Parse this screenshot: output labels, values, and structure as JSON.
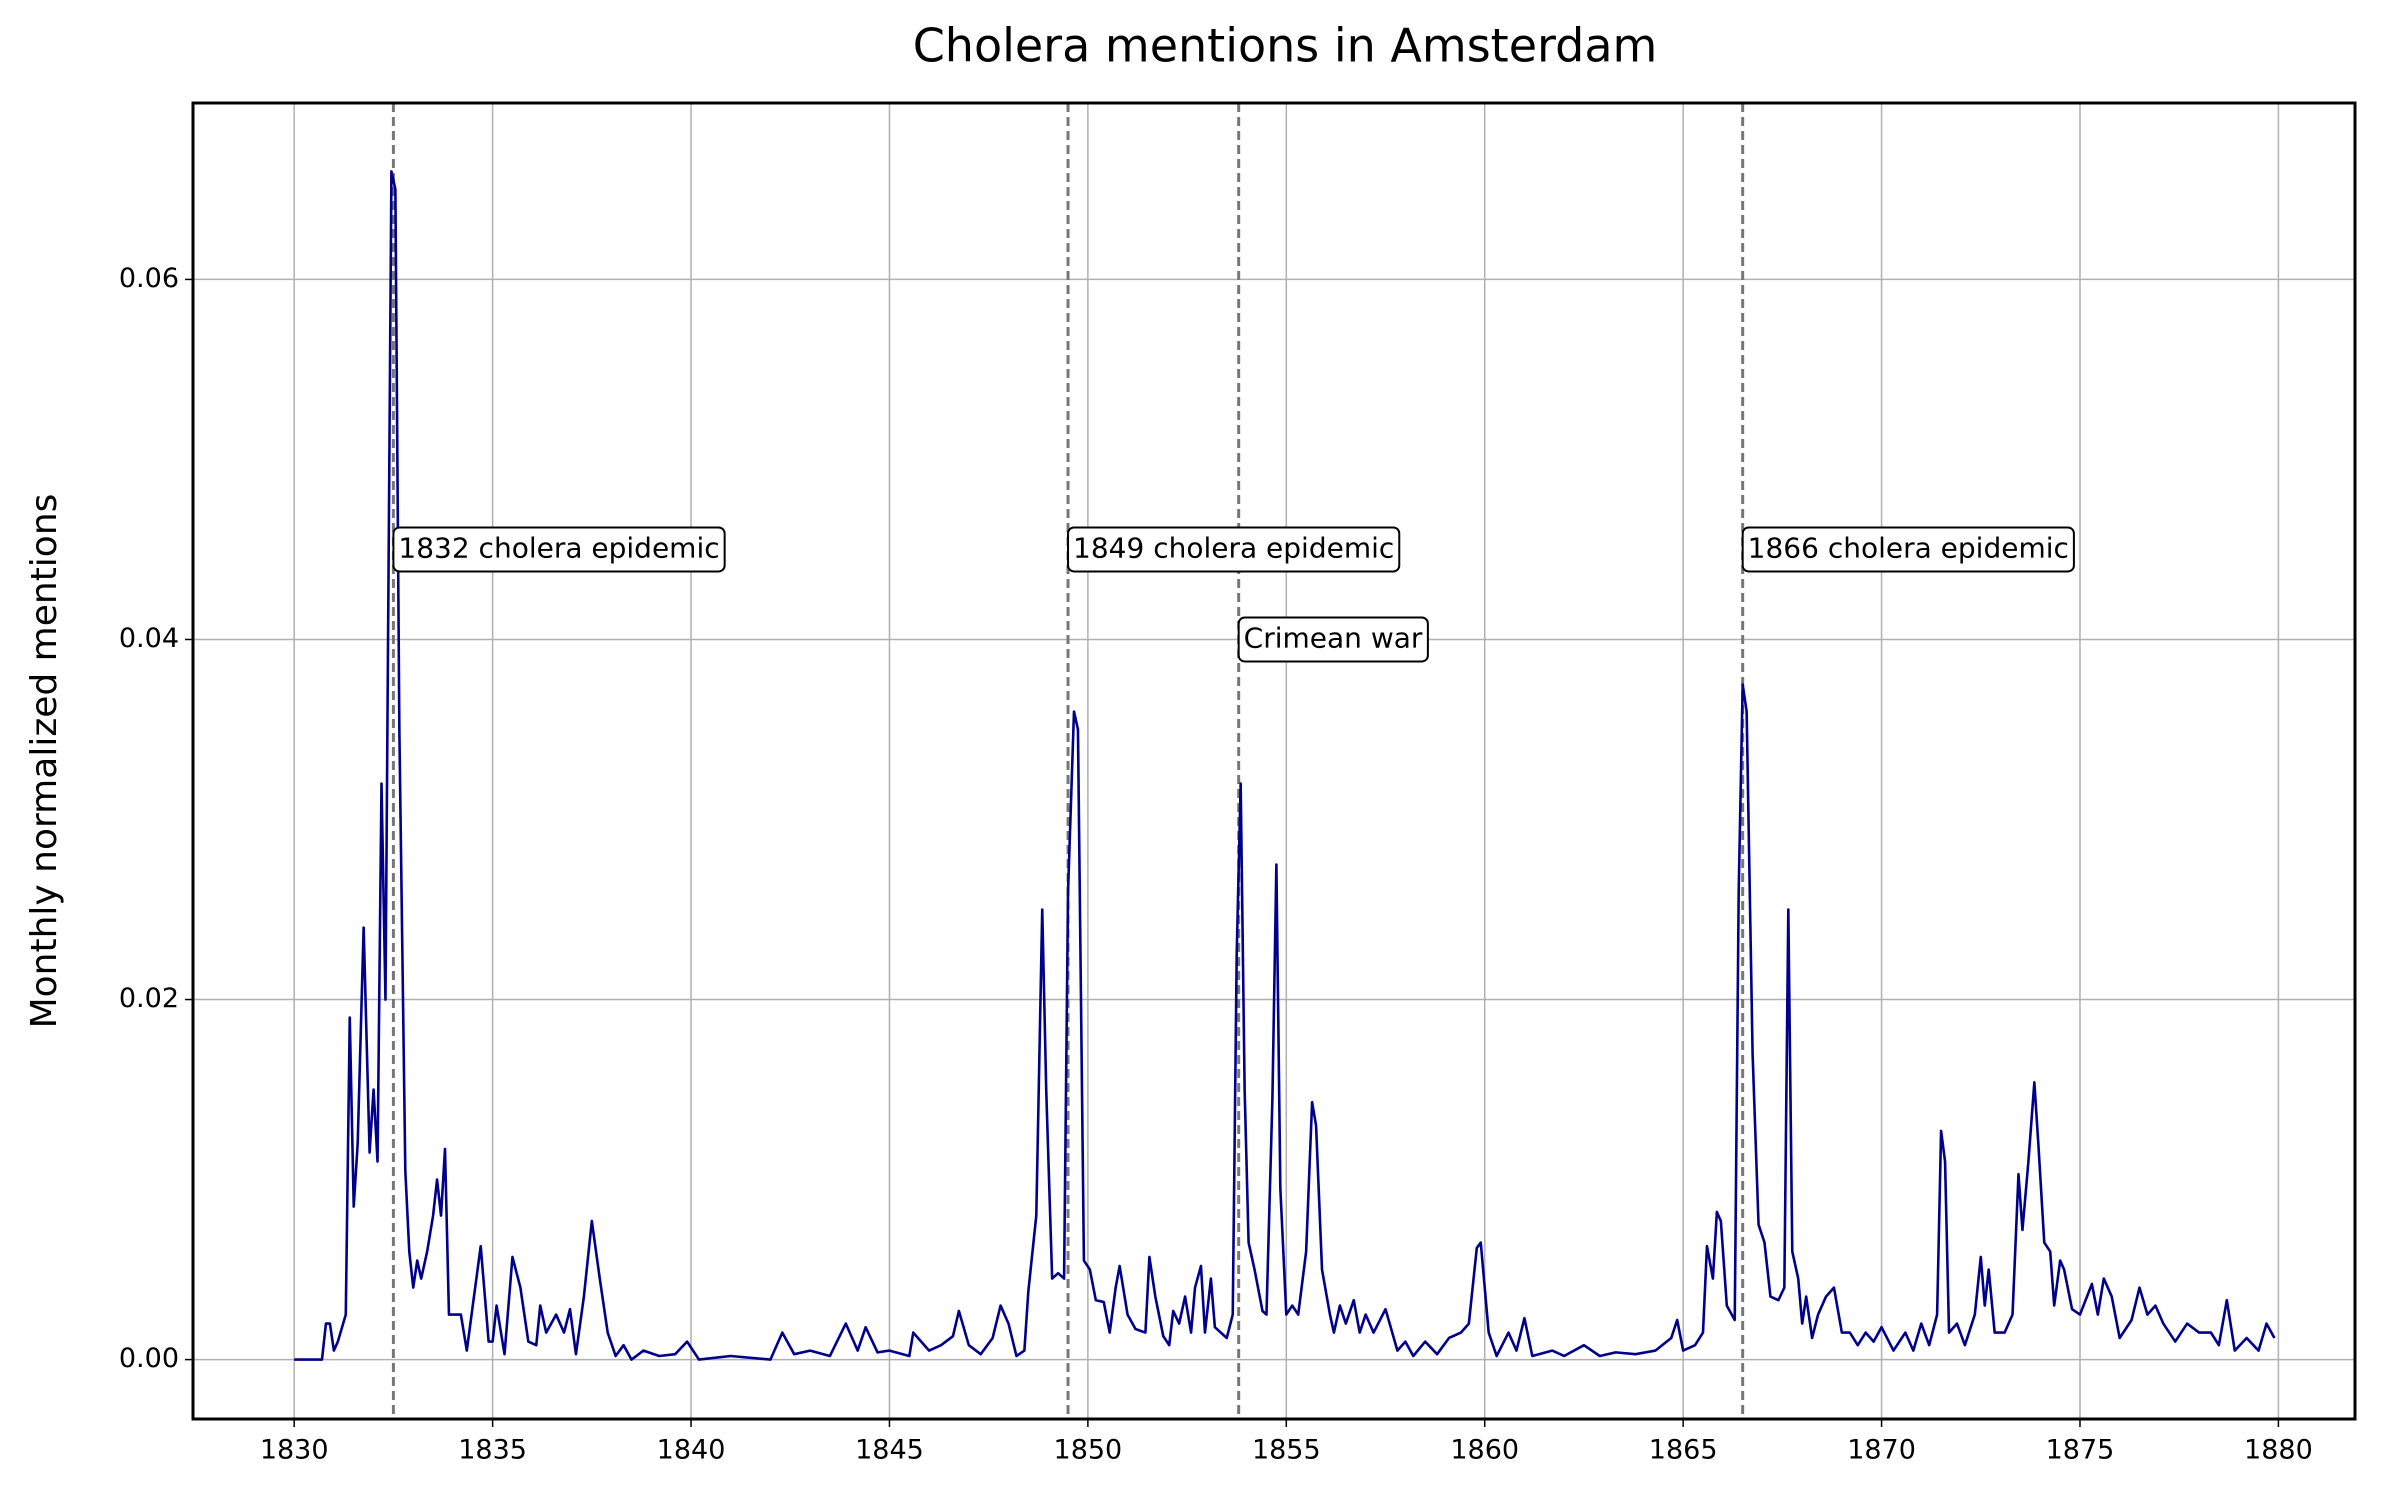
{
  "chart_data": {
    "type": "line",
    "title": "Cholera mentions in Amsterdam",
    "y_label": "Monthly normalized mentions",
    "color": "#00008b",
    "grid": true,
    "xlim": [
      1827.45,
      1881.93
    ],
    "ylim": [
      -0.0033,
      0.0698
    ],
    "xticks": [
      1830,
      1835,
      1840,
      1845,
      1850,
      1855,
      1860,
      1865,
      1870,
      1875,
      1880
    ],
    "yticks": [
      {
        "value": 0,
        "label": "0.00"
      },
      {
        "value": 0.02,
        "label": "0.02"
      },
      {
        "value": 0.04,
        "label": "0.04"
      },
      {
        "value": 0.06,
        "label": "0.06"
      }
    ],
    "annotations": [
      {
        "x": 1832.5,
        "y": 0.045,
        "label": "1832 cholera epidemic"
      },
      {
        "x": 1849.5,
        "y": 0.045,
        "label": "1849 cholera epidemic"
      },
      {
        "x": 1853.8,
        "y": 0.04,
        "label": "Crimean war"
      },
      {
        "x": 1866.5,
        "y": 0.045,
        "label": "1866 cholera epidemic"
      }
    ],
    "x": [
      1830.0,
      1830.7,
      1830.8,
      1830.9,
      1831.0,
      1831.1,
      1831.3,
      1831.4,
      1831.5,
      1831.6,
      1831.75,
      1831.9,
      1832.0,
      1832.1,
      1832.2,
      1832.3,
      1832.45,
      1832.55,
      1832.65,
      1832.8,
      1832.9,
      1833.0,
      1833.1,
      1833.2,
      1833.35,
      1833.5,
      1833.6,
      1833.7,
      1833.8,
      1833.9,
      1834.0,
      1834.2,
      1834.35,
      1834.5,
      1834.7,
      1834.9,
      1835.0,
      1835.1,
      1835.3,
      1835.5,
      1835.7,
      1835.9,
      1836.1,
      1836.2,
      1836.35,
      1836.6,
      1836.8,
      1836.95,
      1837.1,
      1837.3,
      1837.5,
      1837.7,
      1837.9,
      1838.1,
      1838.3,
      1838.5,
      1838.8,
      1839.2,
      1839.6,
      1839.9,
      1840.2,
      1841.0,
      1842.0,
      1842.3,
      1842.6,
      1843.0,
      1843.5,
      1843.9,
      1844.2,
      1844.4,
      1844.7,
      1845.0,
      1845.5,
      1845.6,
      1846.0,
      1846.3,
      1846.6,
      1846.75,
      1847.0,
      1847.3,
      1847.6,
      1847.8,
      1848.0,
      1848.2,
      1848.4,
      1848.5,
      1848.7,
      1848.85,
      1848.95,
      1849.1,
      1849.25,
      1849.4,
      1849.5,
      1849.65,
      1849.75,
      1849.9,
      1850.05,
      1850.2,
      1850.4,
      1850.55,
      1850.7,
      1850.8,
      1851.0,
      1851.2,
      1851.45,
      1851.55,
      1851.7,
      1851.9,
      1852.05,
      1852.15,
      1852.3,
      1852.45,
      1852.6,
      1852.7,
      1852.85,
      1852.95,
      1853.1,
      1853.2,
      1853.5,
      1853.65,
      1853.75,
      1853.85,
      1853.95,
      1854.05,
      1854.2,
      1854.4,
      1854.5,
      1854.65,
      1854.75,
      1854.85,
      1855.0,
      1855.15,
      1855.3,
      1855.5,
      1855.65,
      1855.75,
      1855.9,
      1856.1,
      1856.2,
      1856.35,
      1856.5,
      1856.7,
      1856.85,
      1857.0,
      1857.2,
      1857.5,
      1857.8,
      1858.0,
      1858.2,
      1858.5,
      1858.8,
      1859.1,
      1859.4,
      1859.6,
      1859.8,
      1859.9,
      1860.1,
      1860.3,
      1860.6,
      1860.8,
      1861.0,
      1861.2,
      1861.7,
      1862.0,
      1862.5,
      1862.9,
      1863.3,
      1863.8,
      1864.3,
      1864.7,
      1864.85,
      1865.0,
      1865.3,
      1865.5,
      1865.6,
      1865.75,
      1865.85,
      1865.95,
      1866.1,
      1866.3,
      1866.4,
      1866.5,
      1866.6,
      1866.75,
      1866.9,
      1867.05,
      1867.2,
      1867.4,
      1867.55,
      1867.65,
      1867.75,
      1867.9,
      1868.0,
      1868.1,
      1868.25,
      1868.4,
      1868.6,
      1868.8,
      1869.0,
      1869.2,
      1869.4,
      1869.6,
      1869.8,
      1870.0,
      1870.3,
      1870.6,
      1870.8,
      1871.0,
      1871.2,
      1871.4,
      1871.5,
      1871.6,
      1871.7,
      1871.9,
      1872.1,
      1872.35,
      1872.5,
      1872.6,
      1872.7,
      1872.85,
      1873.1,
      1873.3,
      1873.45,
      1873.55,
      1873.7,
      1873.85,
      1873.95,
      1874.1,
      1874.25,
      1874.35,
      1874.5,
      1874.6,
      1874.8,
      1875.0,
      1875.3,
      1875.45,
      1875.6,
      1875.8,
      1876.0,
      1876.3,
      1876.5,
      1876.7,
      1876.9,
      1877.1,
      1877.4,
      1877.7,
      1878.0,
      1878.3,
      1878.5,
      1878.7,
      1878.9,
      1879.2,
      1879.5,
      1879.7,
      1879.9
    ],
    "values": [
      0,
      0,
      0.002,
      0.002,
      0.0005,
      0.001,
      0.0025,
      0.019,
      0.0085,
      0.012,
      0.024,
      0.0115,
      0.015,
      0.011,
      0.032,
      0.02,
      0.066,
      0.065,
      0.035,
      0.0105,
      0.006,
      0.004,
      0.0055,
      0.0045,
      0.006,
      0.008,
      0.01,
      0.008,
      0.0117,
      0.0025,
      0.0025,
      0.0025,
      0.0005,
      0.003,
      0.0063,
      0.001,
      0.001,
      0.003,
      0.0003,
      0.0057,
      0.004,
      0.001,
      0.0008,
      0.003,
      0.0015,
      0.0025,
      0.0015,
      0.0028,
      0.0003,
      0.0035,
      0.0077,
      0.0045,
      0.0015,
      0.0002,
      0.0008,
      0,
      0.0005,
      0.0002,
      0.0003,
      0.001,
      0,
      0.0002,
      0,
      0.0015,
      0.0003,
      0.0005,
      0.0002,
      0.002,
      0.0005,
      0.0018,
      0.0004,
      0.0005,
      0.0002,
      0.0015,
      0.0005,
      0.0008,
      0.0013,
      0.0027,
      0.0008,
      0.0003,
      0.0012,
      0.003,
      0.002,
      0.0002,
      0.0005,
      0.0038,
      0.008,
      0.025,
      0.015,
      0.0045,
      0.0048,
      0.0045,
      0.026,
      0.036,
      0.035,
      0.0055,
      0.005,
      0.0033,
      0.0032,
      0.0015,
      0.004,
      0.0052,
      0.0025,
      0.0017,
      0.0015,
      0.0057,
      0.0035,
      0.0013,
      0.0008,
      0.0027,
      0.002,
      0.0035,
      0.0015,
      0.004,
      0.0052,
      0.0015,
      0.0045,
      0.0018,
      0.0012,
      0.0025,
      0.0225,
      0.032,
      0.015,
      0.0065,
      0.005,
      0.0027,
      0.0025,
      0.0145,
      0.0275,
      0.0095,
      0.0025,
      0.003,
      0.0025,
      0.006,
      0.0143,
      0.013,
      0.005,
      0.0025,
      0.0015,
      0.003,
      0.002,
      0.0033,
      0.0015,
      0.0025,
      0.0015,
      0.0028,
      0.0005,
      0.001,
      0.0002,
      0.001,
      0.0003,
      0.0012,
      0.0015,
      0.002,
      0.0062,
      0.0065,
      0.0015,
      0.0002,
      0.0015,
      0.0005,
      0.0023,
      0.0002,
      0.0005,
      0.0002,
      0.0008,
      0.0002,
      0.0004,
      0.0003,
      0.0005,
      0.0012,
      0.0022,
      0.0005,
      0.0008,
      0.0015,
      0.0063,
      0.0045,
      0.0082,
      0.0077,
      0.003,
      0.0022,
      0.026,
      0.0375,
      0.036,
      0.017,
      0.0075,
      0.0065,
      0.0035,
      0.0033,
      0.004,
      0.025,
      0.006,
      0.0045,
      0.002,
      0.0035,
      0.0012,
      0.0025,
      0.0035,
      0.004,
      0.0015,
      0.0015,
      0.0008,
      0.0015,
      0.001,
      0.0018,
      0.0005,
      0.0015,
      0.0005,
      0.002,
      0.0008,
      0.0025,
      0.0127,
      0.011,
      0.0015,
      0.002,
      0.0008,
      0.0025,
      0.0057,
      0.003,
      0.005,
      0.0015,
      0.0015,
      0.0025,
      0.0103,
      0.0072,
      0.011,
      0.0154,
      0.012,
      0.0065,
      0.006,
      0.003,
      0.0055,
      0.005,
      0.0028,
      0.0025,
      0.0042,
      0.0025,
      0.0045,
      0.0035,
      0.0012,
      0.0022,
      0.004,
      0.0025,
      0.003,
      0.002,
      0.001,
      0.002,
      0.0015,
      0.0015,
      0.0008,
      0.0033,
      0.0005,
      0.0012,
      0.0005,
      0.002,
      0.0012
    ]
  }
}
